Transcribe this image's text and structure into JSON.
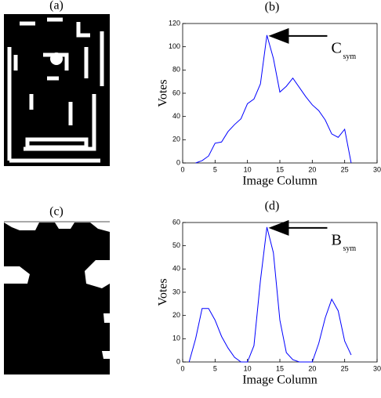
{
  "figure": {
    "image_labels": [
      "(a)",
      "(c)"
    ]
  },
  "chart_data": [
    {
      "type": "line",
      "title": "(b)",
      "xlabel": "Image Column",
      "ylabel": "Votes",
      "x": [
        2,
        3,
        4,
        5,
        6,
        7,
        8,
        9,
        10,
        11,
        12,
        13,
        14,
        15,
        16,
        17,
        18,
        19,
        20,
        21,
        22,
        23,
        24,
        25,
        26
      ],
      "series": [
        {
          "color": "#0000ff",
          "values": [
            0,
            2,
            6,
            17,
            18,
            27,
            33,
            38,
            51,
            55,
            68,
            110,
            90,
            61,
            66,
            73,
            65,
            57,
            50,
            45,
            37,
            25,
            22,
            29,
            0
          ]
        }
      ],
      "xlim": [
        0,
        30
      ],
      "xticks": [
        0,
        5,
        10,
        15,
        20,
        25,
        30
      ],
      "ylim": [
        0,
        120
      ],
      "yticks": [
        0,
        20,
        40,
        60,
        80,
        100,
        120
      ],
      "annotation": {
        "text": "C",
        "subscript": "sym"
      }
    },
    {
      "type": "line",
      "title": "(d)",
      "xlabel": "Image Column",
      "ylabel": "Votes",
      "x": [
        1,
        2,
        3,
        4,
        5,
        6,
        7,
        8,
        9,
        10,
        11,
        12,
        13,
        14,
        15,
        16,
        17,
        18,
        19,
        20,
        21,
        22,
        23,
        24,
        25,
        26
      ],
      "series": [
        {
          "color": "#0000ff",
          "values": [
            0,
            10,
            23,
            23,
            18,
            11,
            6,
            2,
            0,
            0,
            7,
            35,
            58,
            47,
            18,
            4,
            1,
            0,
            0,
            0,
            8,
            19,
            27,
            22,
            9,
            3
          ]
        }
      ],
      "xlim": [
        0,
        30
      ],
      "xticks": [
        0,
        5,
        10,
        15,
        20,
        25,
        30
      ],
      "ylim": [
        0,
        60
      ],
      "yticks": [
        0,
        10,
        20,
        30,
        40,
        50,
        60
      ],
      "annotation": {
        "text": "B",
        "subscript": "sym"
      }
    }
  ]
}
